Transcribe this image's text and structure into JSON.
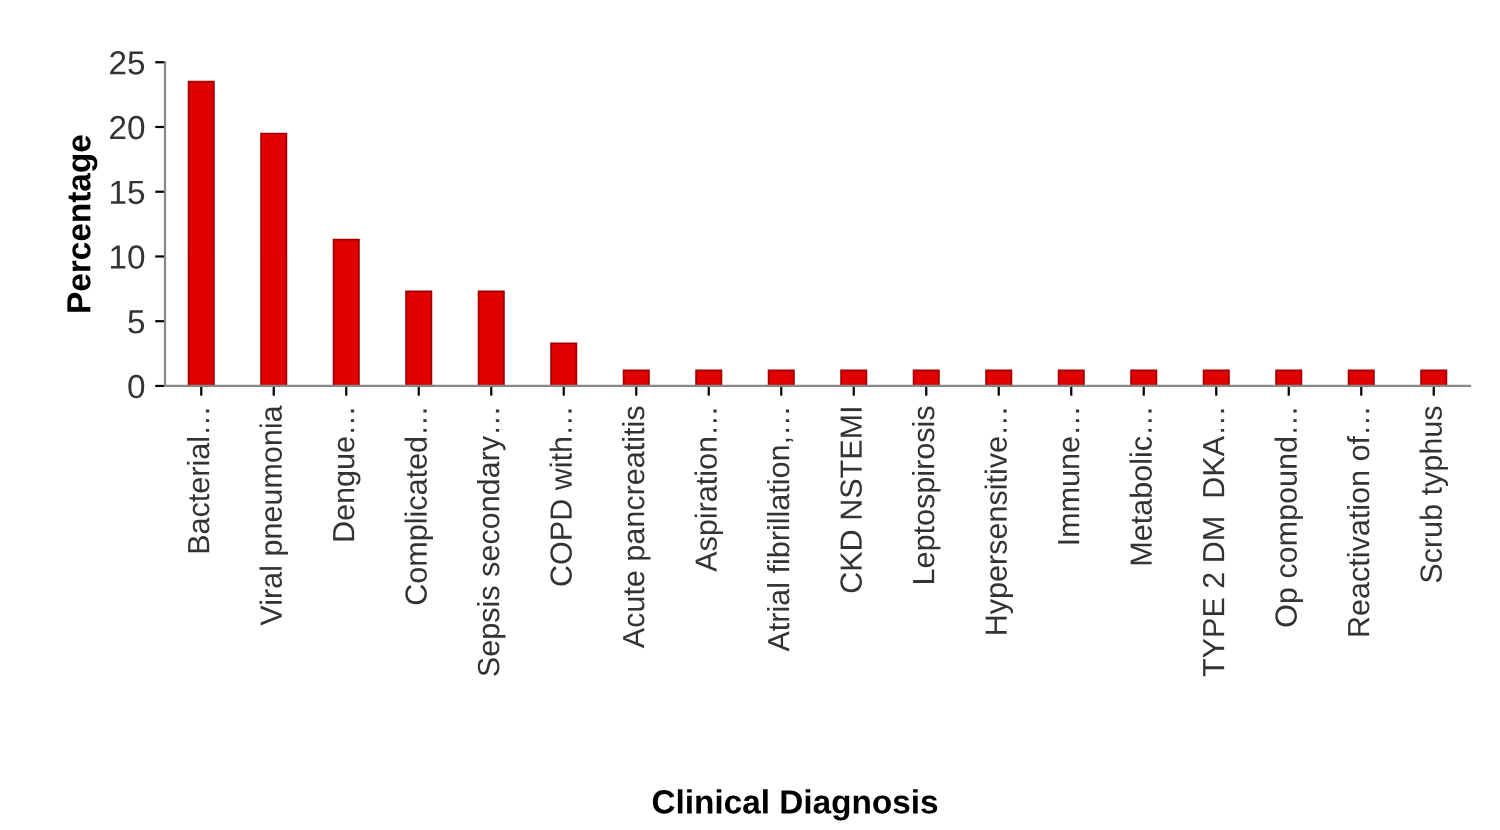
{
  "chart_data": {
    "type": "bar",
    "xlabel": "Clinical Diagnosis",
    "ylabel": "Percentage",
    "categories": [
      "Bacterial…",
      "Viral pneumonia",
      "Dengue…",
      "Complicated…",
      "Sepsis secondary…",
      "COPD with…",
      "Acute pancreatitis",
      "Aspiration…",
      "Atrial fibrillation,…",
      "CKD NSTEMI",
      "Leptospirosis",
      "Hypersensitive…",
      "Immune…",
      "Metabolic…",
      "TYPE 2 DM  DKA…",
      "Op compound…",
      "Reactivation of…",
      "Scrub typhus"
    ],
    "values": [
      23.5,
      19.5,
      11.3,
      7.3,
      7.3,
      3.3,
      1.2,
      1.2,
      1.2,
      1.2,
      1.2,
      1.2,
      1.2,
      1.2,
      1.2,
      1.2,
      1.2,
      1.2
    ],
    "color": "#e00000",
    "ylim": [
      0,
      25
    ],
    "yticks": [
      0,
      5,
      10,
      15,
      20,
      25
    ],
    "grid": false,
    "legend": false
  }
}
